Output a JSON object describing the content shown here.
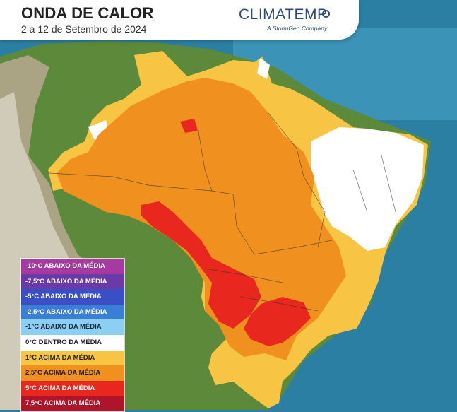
{
  "header": {
    "title": "ONDA DE CALOR",
    "subtitle": "2 a 12 de Setembro de 2024",
    "brand": "CLIMATEMP",
    "tagline": "A StormGeo Company"
  },
  "legend": {
    "items": [
      {
        "label": "-10°C ABAIXO DA MÉDIA",
        "color": "#a63aa0",
        "text_color": "#ffffff"
      },
      {
        "label": "-7,5°C ABAIXO DA MÉDIA",
        "color": "#6a3aa8",
        "text_color": "#ffffff"
      },
      {
        "label": "-5°C ABAIXO DA MÉDIA",
        "color": "#3a4fc6",
        "text_color": "#ffffff"
      },
      {
        "label": "-2,5°C ABAIXO DA MÉDIA",
        "color": "#3a7fd6",
        "text_color": "#ffffff"
      },
      {
        "label": "-1°C ABAIXO DA MÉDIA",
        "color": "#8ccff2",
        "text_color": "#1e2a3a"
      },
      {
        "label": "0°C DENTRO DA MÉDIA",
        "color": "#ffffff",
        "text_color": "#222222"
      },
      {
        "label": "1°C ACIMA DA MÉDIA",
        "color": "#f7c543",
        "text_color": "#222222"
      },
      {
        "label": "2,5°C ACIMA DA MÉDIA",
        "color": "#f0901f",
        "text_color": "#222222"
      },
      {
        "label": "5°C ACIMA DA MÉDIA",
        "color": "#e8281e",
        "text_color": "#ffffff"
      },
      {
        "label": "7,5°C ACIMA DA MÉDIA",
        "color": "#b0142a",
        "text_color": "#ffffff"
      }
    ]
  },
  "map": {
    "ocean_color": "#2b7fa3",
    "land_color": "#5c8a3a",
    "andes_color": "#b8a892"
  }
}
